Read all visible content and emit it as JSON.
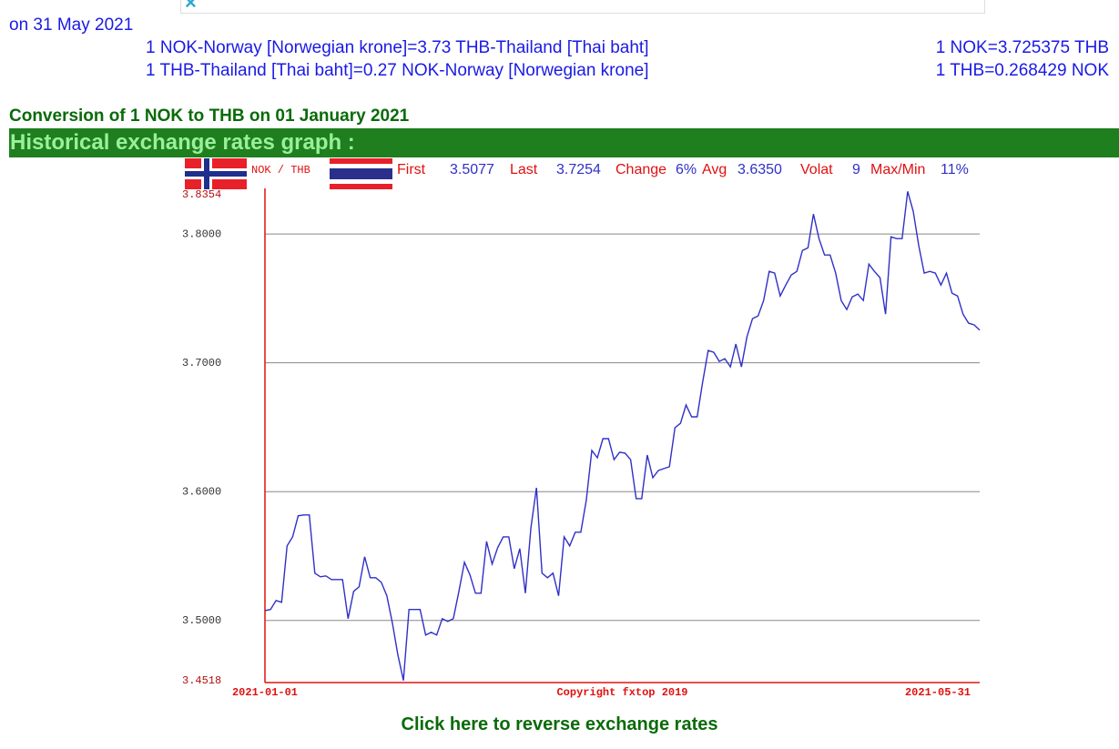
{
  "header": {
    "date_line": "on 31 May 2021",
    "rates": [
      {
        "text": "1 NOK-Norway [Norwegian krone]=3.73 THB-Thailand [Thai baht]",
        "exact": "1 NOK=3.725375 THB"
      },
      {
        "text": "1 THB-Thailand [Thai baht]=0.27 NOK-Norway [Norwegian krone]",
        "exact": "1 THB=0.268429 NOK"
      }
    ]
  },
  "conversion_title": "Conversion of 1 NOK to THB on 01 January 2021",
  "graph_heading": "Historical exchange rates graph :",
  "chart_data": {
    "type": "line",
    "pair_label": "NOK / THB",
    "stats": [
      {
        "label": "First",
        "value": "3.5077"
      },
      {
        "label": "Last",
        "value": "3.7254"
      },
      {
        "label": "Change",
        "value": "6%"
      },
      {
        "label": "Avg",
        "value": "3.6350"
      },
      {
        "label": "Volat",
        "value": "9"
      },
      {
        "label": "Max/Min",
        "value": "11%"
      }
    ],
    "copyright": "Copyright fxtop 2019",
    "color": "#3030c8",
    "axis_color": "#e01010",
    "grid": true,
    "ylim": [
      3.4518,
      3.8354
    ],
    "yticks": [
      {
        "value": 3.8354,
        "label": "3.8354"
      },
      {
        "value": 3.8,
        "label": "3.8000"
      },
      {
        "value": 3.7,
        "label": "3.7000"
      },
      {
        "value": 3.6,
        "label": "3.6000"
      },
      {
        "value": 3.5,
        "label": "3.5000"
      },
      {
        "value": 3.4518,
        "label": "3.4518"
      }
    ],
    "categories": [
      "2021-01-01",
      null,
      null,
      null,
      null,
      null,
      null,
      null,
      null,
      null,
      null,
      null,
      null,
      null,
      null,
      null,
      null,
      null,
      null,
      null,
      null,
      null,
      null,
      null,
      null,
      null,
      null,
      null,
      null,
      null,
      null,
      null,
      null,
      null,
      null,
      null,
      null,
      null,
      null,
      null,
      null,
      null,
      null,
      null,
      null,
      null,
      null,
      null,
      null,
      null,
      null,
      null,
      null,
      null,
      null,
      null,
      null,
      null,
      null,
      null,
      null,
      null,
      null,
      null,
      null,
      null,
      null,
      null,
      null,
      null,
      null,
      null,
      null,
      null,
      null,
      null,
      null,
      null,
      null,
      null,
      null,
      null,
      null,
      null,
      null,
      null,
      null,
      null,
      null,
      null,
      null,
      null,
      null,
      null,
      null,
      null,
      null,
      null,
      null,
      null,
      null,
      null,
      null,
      null,
      null,
      null,
      null,
      null,
      null,
      null,
      null,
      null,
      null,
      null,
      null,
      null,
      null,
      null,
      null,
      null,
      null,
      null,
      null,
      null,
      null,
      null,
      null,
      null,
      null,
      "2021-05-31"
    ],
    "values": [
      3.5077,
      3.5085,
      3.5155,
      3.5141,
      3.5579,
      3.5649,
      3.5812,
      3.5819,
      3.5819,
      3.5367,
      3.5339,
      3.5346,
      3.5318,
      3.5318,
      3.5318,
      3.5014,
      3.5226,
      3.5261,
      3.5494,
      3.5332,
      3.5332,
      3.5296,
      3.5191,
      3.4979,
      3.4732,
      3.4534,
      3.5085,
      3.5085,
      3.5085,
      3.4887,
      3.4908,
      3.4887,
      3.5014,
      3.4993,
      3.5014,
      3.5226,
      3.5452,
      3.5353,
      3.5212,
      3.5212,
      3.5614,
      3.5438,
      3.5565,
      3.5649,
      3.5649,
      3.5402,
      3.5558,
      3.5212,
      3.572,
      3.603,
      3.5367,
      3.5332,
      3.5367,
      3.5191,
      3.5649,
      3.5579,
      3.5685,
      3.5685,
      3.5932,
      3.632,
      3.6263,
      3.6411,
      3.6411,
      3.6249,
      3.6306,
      3.6299,
      3.6249,
      3.5946,
      3.5946,
      3.6284,
      3.6108,
      3.6164,
      3.6179,
      3.6193,
      3.6496,
      3.6531,
      3.6673,
      3.6581,
      3.6581,
      3.6849,
      3.7096,
      3.7082,
      3.7011,
      3.7032,
      3.6969,
      3.7145,
      3.6969,
      3.7202,
      3.7343,
      3.7364,
      3.7484,
      3.771,
      3.7696,
      3.7519,
      3.7604,
      3.7682,
      3.771,
      3.7872,
      3.7893,
      3.8155,
      3.7964,
      3.7837,
      3.7837,
      3.7696,
      3.7484,
      3.7414,
      3.7512,
      3.7534,
      3.7484,
      3.7766,
      3.771,
      3.7661,
      3.7378,
      3.7978,
      3.7964,
      3.7964,
      3.8331,
      3.8176,
      3.7908,
      3.7696,
      3.771,
      3.7696,
      3.7604,
      3.7696,
      3.7541,
      3.7519,
      3.7378,
      3.7308,
      3.7294,
      3.7254
    ]
  },
  "reverse_link": "Click here to reverse exchange rates"
}
